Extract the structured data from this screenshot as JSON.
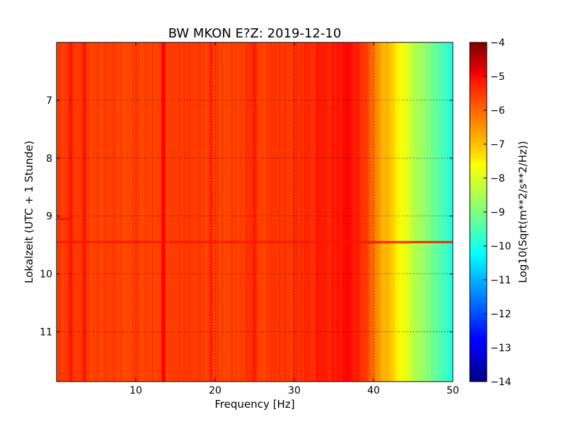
{
  "chart_data": {
    "type": "heatmap",
    "title": "BW MKON E?Z: 2019-12-10",
    "xlabel": "Frequency [Hz]",
    "ylabel": "Lokalzeit (UTC + 1 Stunde)",
    "xlim": [
      0,
      50
    ],
    "ylim": [
      6,
      11.86
    ],
    "y_inverted": true,
    "x_ticks": [
      10,
      20,
      30,
      40,
      50
    ],
    "y_ticks": [
      7,
      8,
      9,
      10,
      11
    ],
    "grid": true,
    "colormap": "jet",
    "colorbar": {
      "label": "Log10(Sqrt(m**2/s**2/Hz))",
      "range": [
        -14,
        -4
      ],
      "ticks": [
        -4,
        -5,
        -6,
        -7,
        -8,
        -9,
        -10,
        -11,
        -12,
        -13,
        -14
      ]
    },
    "spectrum_profile": {
      "frequency": [
        0,
        5,
        10,
        15,
        20,
        25,
        30,
        35,
        37,
        39,
        40,
        41,
        42,
        43,
        44,
        45,
        46,
        47,
        48,
        49,
        50
      ],
      "value": [
        -5.8,
        -5.9,
        -5.9,
        -5.8,
        -5.9,
        -5.8,
        -5.75,
        -5.5,
        -5.4,
        -5.8,
        -6.4,
        -6.9,
        -7.2,
        -7.6,
        -8.0,
        -8.4,
        -8.7,
        -9.0,
        -9.3,
        -9.6,
        -10.0
      ]
    },
    "line_features": [
      {
        "frequency": 1.8,
        "delta": 0.35
      },
      {
        "frequency": 3.5,
        "delta": 0.45
      },
      {
        "frequency": 13.5,
        "delta": 0.5
      },
      {
        "frequency": 19.5,
        "delta": 0.35
      },
      {
        "frequency": 25.0,
        "delta": 0.2
      },
      {
        "frequency": 33.0,
        "delta": 0.2
      }
    ],
    "time_features": [
      {
        "time": 9.05,
        "delta": 0.5,
        "freq_range": [
          0,
          2
        ]
      },
      {
        "time": 9.45,
        "delta": 0.35,
        "freq_range": [
          0,
          50
        ]
      }
    ]
  }
}
